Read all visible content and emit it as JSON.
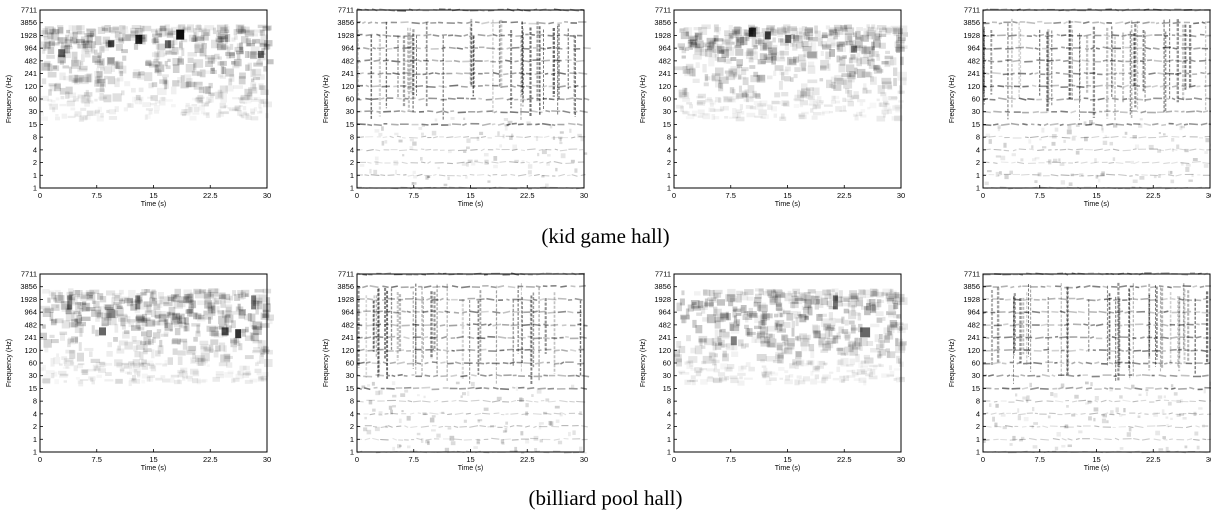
{
  "figure": {
    "captions": [
      "(kid game hall)",
      "(billiard pool hall)"
    ]
  },
  "chart_data": [
    {
      "type": "heatmap",
      "title": "",
      "xlabel": "Time (s)",
      "ylabel": "Frequency (Hz)",
      "x_ticks": [
        "0",
        "7.5",
        "15",
        "22.5",
        "30"
      ],
      "xlim": [
        0,
        30
      ],
      "y_scale": "log",
      "y_ticks": [
        "1",
        "1",
        "2",
        "4",
        "8",
        "15",
        "30",
        "60",
        "120",
        "241",
        "482",
        "964",
        "1928",
        "3856",
        "7711"
      ],
      "colormap": "grayscale (white = low, black = high)",
      "pattern": "spectrogram",
      "description_energy_band": "120-3856 Hz, hotspots 482-1928 Hz"
    },
    {
      "type": "heatmap",
      "title": "",
      "xlabel": "Time (s)",
      "ylabel": "Frequency (Hz)",
      "x_ticks": [
        "0",
        "7.5",
        "15",
        "22.5",
        "30"
      ],
      "xlim": [
        0,
        30
      ],
      "y_scale": "log",
      "y_ticks": [
        "1",
        "1",
        "2",
        "4",
        "8",
        "15",
        "30",
        "60",
        "120",
        "241",
        "482",
        "964",
        "1928",
        "3856",
        "7711"
      ],
      "colormap": "grayscale (white = low, black = high)",
      "pattern": "modulation grid"
    },
    {
      "type": "heatmap",
      "title": "",
      "xlabel": "Time (s)",
      "ylabel": "Frequency (Hz)",
      "x_ticks": [
        "0",
        "7.5",
        "15",
        "22.5",
        "30"
      ],
      "xlim": [
        0,
        30
      ],
      "y_scale": "log",
      "y_ticks": [
        "1",
        "1",
        "2",
        "4",
        "8",
        "15",
        "30",
        "60",
        "120",
        "241",
        "482",
        "964",
        "1928",
        "3856",
        "7711"
      ],
      "colormap": "grayscale (white = low, black = high)",
      "pattern": "spectrogram"
    },
    {
      "type": "heatmap",
      "title": "",
      "xlabel": "Time (s)",
      "ylabel": "Frequency (Hz)",
      "x_ticks": [
        "0",
        "7.5",
        "15",
        "22.5",
        "30"
      ],
      "xlim": [
        0,
        30
      ],
      "y_scale": "log",
      "y_ticks": [
        "1",
        "1",
        "2",
        "4",
        "8",
        "15",
        "30",
        "60",
        "120",
        "241",
        "482",
        "964",
        "1928",
        "3856",
        "7711"
      ],
      "colormap": "grayscale (white = low, black = high)",
      "pattern": "modulation grid"
    },
    {
      "type": "heatmap",
      "title": "",
      "xlabel": "Time (s)",
      "ylabel": "Frequency (Hz)",
      "x_ticks": [
        "0",
        "7.5",
        "15",
        "22.5",
        "30"
      ],
      "xlim": [
        0,
        30
      ],
      "y_scale": "log",
      "y_ticks": [
        "1",
        "1",
        "2",
        "4",
        "8",
        "15",
        "30",
        "60",
        "120",
        "241",
        "482",
        "964",
        "1928",
        "3856",
        "7711"
      ],
      "colormap": "grayscale (white = low, black = high)",
      "pattern": "spectrogram"
    },
    {
      "type": "heatmap",
      "title": "",
      "xlabel": "Time (s)",
      "ylabel": "Frequency (Hz)",
      "x_ticks": [
        "0",
        "7.5",
        "15",
        "22.5",
        "30"
      ],
      "xlim": [
        0,
        30
      ],
      "y_scale": "log",
      "y_ticks": [
        "1",
        "1",
        "2",
        "4",
        "8",
        "15",
        "30",
        "60",
        "120",
        "241",
        "482",
        "964",
        "1928",
        "3856",
        "7711"
      ],
      "colormap": "grayscale (white = low, black = high)",
      "pattern": "modulation grid"
    },
    {
      "type": "heatmap",
      "title": "",
      "xlabel": "Time (s)",
      "ylabel": "Frequency (Hz)",
      "x_ticks": [
        "0",
        "7.5",
        "15",
        "22.5",
        "30"
      ],
      "xlim": [
        0,
        30
      ],
      "y_scale": "log",
      "y_ticks": [
        "1",
        "1",
        "2",
        "4",
        "8",
        "15",
        "30",
        "60",
        "120",
        "241",
        "482",
        "964",
        "1928",
        "3856",
        "7711"
      ],
      "colormap": "grayscale (white = low, black = high)",
      "pattern": "spectrogram"
    },
    {
      "type": "heatmap",
      "title": "",
      "xlabel": "Time (s)",
      "ylabel": "Frequency (Hz)",
      "x_ticks": [
        "0",
        "7.5",
        "15",
        "22.5",
        "30"
      ],
      "xlim": [
        0,
        30
      ],
      "y_scale": "log",
      "y_ticks": [
        "1",
        "1",
        "2",
        "4",
        "8",
        "15",
        "30",
        "60",
        "120",
        "241",
        "482",
        "964",
        "1928",
        "3856",
        "7711"
      ],
      "colormap": "grayscale (white = low, black = high)",
      "pattern": "modulation grid"
    }
  ]
}
